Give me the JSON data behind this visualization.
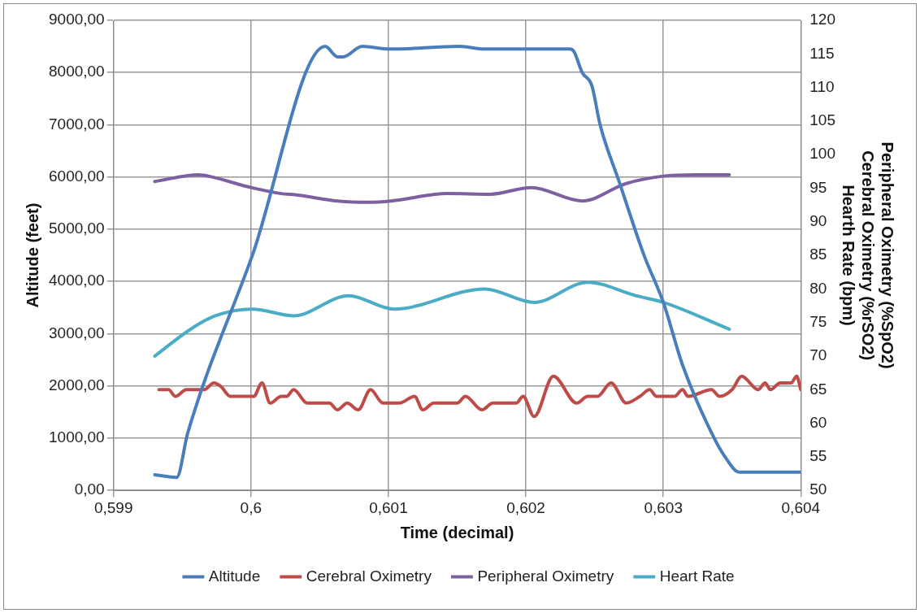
{
  "chart_data": {
    "type": "line",
    "xlabel": "Time (decimal)",
    "ylabel": "Altitude (feet)",
    "y2label": "Peripheral Oximetry (%SpO2)\nCerebral Oximetry (%rSO2)\nHearth Rate (bpm)",
    "xlim": [
      0.599,
      0.604
    ],
    "xticks": [
      {
        "value": 0.599,
        "label": "0,599"
      },
      {
        "value": 0.6,
        "label": "0,6"
      },
      {
        "value": 0.601,
        "label": "0,601"
      },
      {
        "value": 0.602,
        "label": "0,602"
      },
      {
        "value": 0.603,
        "label": "0,603"
      },
      {
        "value": 0.604,
        "label": "0,604"
      }
    ],
    "ylim": [
      0,
      9000
    ],
    "yticks": [
      {
        "value": 0,
        "label": "0,00"
      },
      {
        "value": 1000,
        "label": "1000,00"
      },
      {
        "value": 2000,
        "label": "2000,00"
      },
      {
        "value": 3000,
        "label": "3000,00"
      },
      {
        "value": 4000,
        "label": "4000,00"
      },
      {
        "value": 5000,
        "label": "5000,00"
      },
      {
        "value": 6000,
        "label": "6000,00"
      },
      {
        "value": 7000,
        "label": "7000,00"
      },
      {
        "value": 8000,
        "label": "8000,00"
      },
      {
        "value": 9000,
        "label": "9000,00"
      }
    ],
    "y2lim": [
      50,
      120
    ],
    "y2ticks": [
      50,
      55,
      60,
      65,
      70,
      75,
      80,
      85,
      90,
      95,
      100,
      105,
      110,
      115,
      120
    ],
    "grid": true,
    "legend": "bottom",
    "marker": "none",
    "line_style": "solid",
    "series": [
      {
        "name": "Altitude",
        "color": "#4a7ebb",
        "x": [
          0.5993,
          0.59946,
          0.59954,
          0.60001,
          0.60054,
          0.60063,
          0.60067,
          0.60081,
          0.60101,
          0.60152,
          0.6017,
          0.602,
          0.60232,
          0.60235,
          0.60241,
          0.60248,
          0.60254,
          0.60268,
          0.60286,
          0.603,
          0.60314,
          0.60337,
          0.60346,
          0.60355,
          0.604
        ],
        "values": [
          300,
          250,
          1100,
          4500,
          8500,
          8300,
          8300,
          8500,
          8450,
          8500,
          8450,
          8450,
          8450,
          8400,
          8000,
          7750,
          7000,
          5900,
          4500,
          3600,
          2400,
          1000,
          600,
          350,
          350
        ]
      },
      {
        "name": "Cerebral Oximetry",
        "color": "#be4b48",
        "axis": "y2",
        "x": [
          0.59933,
          0.5994,
          0.59945,
          0.59953,
          0.59966,
          0.59973,
          0.59978,
          0.59985,
          0.60002,
          0.60008,
          0.60014,
          0.60022,
          0.60026,
          0.60031,
          0.60041,
          0.60057,
          0.60063,
          0.6007,
          0.60078,
          0.60087,
          0.60096,
          0.60108,
          0.60119,
          0.60125,
          0.60133,
          0.6015,
          0.60156,
          0.60168,
          0.60176,
          0.60193,
          0.60198,
          0.60206,
          0.6022,
          0.60237,
          0.60245,
          0.60252,
          0.60262,
          0.60273,
          0.60283,
          0.6029,
          0.60295,
          0.60308,
          0.60314,
          0.60318,
          0.60335,
          0.60341,
          0.6035,
          0.60357,
          0.60369,
          0.60374,
          0.60378,
          0.60385,
          0.60393,
          0.60397,
          0.604
        ],
        "values": [
          65,
          65,
          64,
          65,
          65,
          66,
          65.5,
          64,
          64,
          66,
          63,
          64,
          64,
          65,
          63,
          63,
          62,
          63,
          62,
          65,
          63,
          63,
          64,
          62,
          63,
          63,
          64,
          62,
          63,
          63,
          64,
          61,
          67,
          63,
          64,
          64,
          66,
          63,
          64,
          65,
          64,
          64,
          65,
          64,
          65,
          64,
          65,
          67,
          65,
          66,
          65,
          66,
          66,
          67,
          65
        ]
      },
      {
        "name": "Peripheral Oximetry",
        "color": "#7d60a0",
        "axis": "y2",
        "x": [
          0.5993,
          0.59962,
          0.59969,
          0.6,
          0.60022,
          0.60033,
          0.60063,
          0.60086,
          0.60102,
          0.60143,
          0.60174,
          0.60204,
          0.60241,
          0.60273,
          0.603,
          0.60323,
          0.60348
        ],
        "values": [
          96,
          97,
          96.8,
          95.1,
          94.2,
          94,
          93.1,
          92.9,
          93.1,
          94.2,
          94.1,
          95.1,
          93.1,
          95.7,
          96.8,
          97,
          97
        ]
      },
      {
        "name": "Heart Rate",
        "color": "#4bacc6",
        "axis": "y2",
        "x": [
          0.5993,
          0.59956,
          0.59974,
          0.60001,
          0.60031,
          0.60071,
          0.60104,
          0.6017,
          0.60206,
          0.60245,
          0.6028,
          0.603,
          0.60348
        ],
        "values": [
          70,
          74,
          76,
          77,
          76,
          79,
          77,
          80,
          78,
          81,
          79,
          78,
          74
        ]
      }
    ]
  }
}
